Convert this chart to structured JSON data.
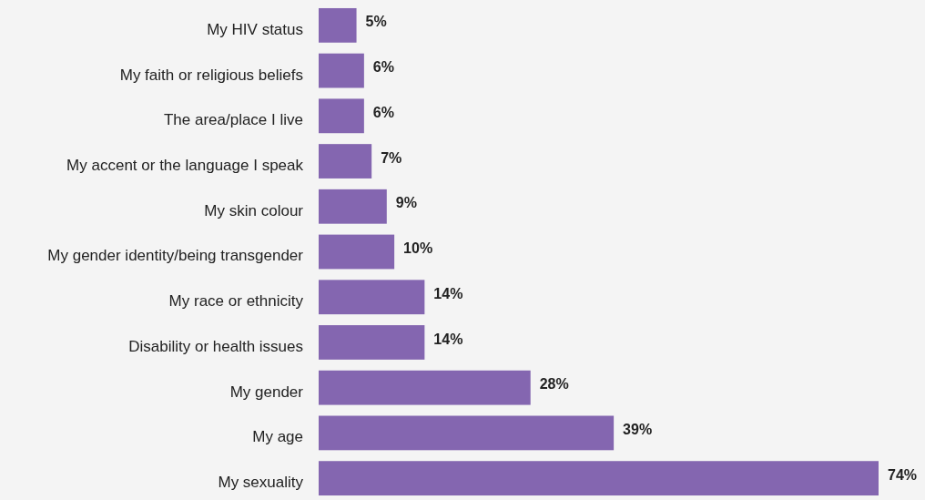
{
  "chart_data": {
    "type": "bar",
    "orientation": "horizontal",
    "categories": [
      "My HIV status",
      "My faith or religious beliefs",
      "The area/place I live",
      "My accent or the language I speak",
      "My skin colour",
      "My gender identity/being transgender",
      "My race or ethnicity",
      "Disability or health issues",
      "My gender",
      "My age",
      "My sexuality"
    ],
    "values": [
      5,
      6,
      6,
      7,
      9,
      10,
      14,
      14,
      28,
      39,
      74
    ],
    "value_labels": [
      "5%",
      "6%",
      "6%",
      "7%",
      "9%",
      "10%",
      "14%",
      "14%",
      "28%",
      "39%",
      "74%"
    ],
    "color": "#8466b0"
  }
}
